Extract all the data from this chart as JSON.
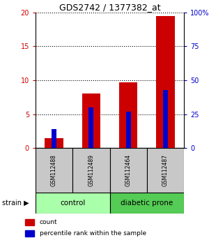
{
  "title": "GDS2742 / 1377382_at",
  "samples": [
    "GSM112488",
    "GSM112489",
    "GSM112464",
    "GSM112487"
  ],
  "count_values": [
    1.5,
    8.1,
    9.7,
    19.5
  ],
  "percentile_values": [
    14,
    30,
    27,
    43
  ],
  "ylim_left": [
    0,
    20
  ],
  "ylim_right": [
    0,
    100
  ],
  "yticks_left": [
    0,
    5,
    10,
    15,
    20
  ],
  "yticks_right": [
    0,
    25,
    50,
    75,
    100
  ],
  "groups": [
    {
      "label": "control",
      "samples": [
        0,
        1
      ],
      "color": "#aaffaa"
    },
    {
      "label": "diabetic prone",
      "samples": [
        2,
        3
      ],
      "color": "#55cc55"
    }
  ],
  "red_color": "#CC0000",
  "blue_color": "#0000CC",
  "grey_color": "#C8C8C8",
  "bg_color": "#FFFFFF",
  "left_label_color": "#CC0000",
  "right_label_color": "#0000CC",
  "legend_items": [
    {
      "label": "count",
      "color": "#CC0000"
    },
    {
      "label": "percentile rank within the sample",
      "color": "#0000CC"
    }
  ]
}
